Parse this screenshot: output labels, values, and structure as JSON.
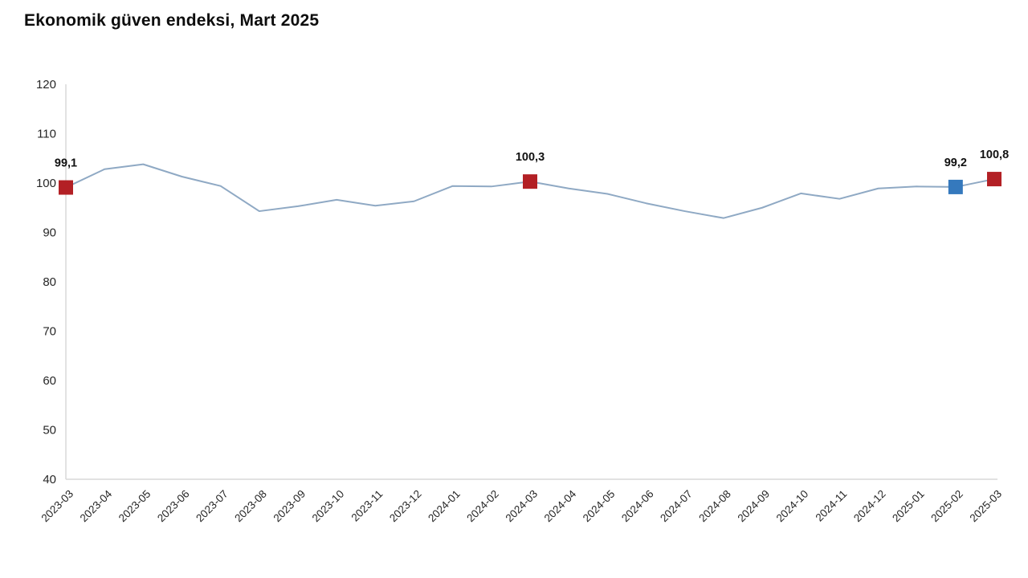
{
  "title": "Ekonomik güven endeksi, Mart 2025",
  "chart_data": {
    "type": "line",
    "title": "Ekonomik güven endeksi, Mart 2025",
    "xlabel": "",
    "ylabel": "",
    "ylim": [
      40,
      120
    ],
    "yticks": [
      120,
      110,
      100,
      90,
      80,
      70,
      60,
      50,
      40
    ],
    "grid": false,
    "legend": "none",
    "line_color": "#8fa9c4",
    "axis_color": "#d9d9d9",
    "categories": [
      "2023-03",
      "2023-04",
      "2023-05",
      "2023-06",
      "2023-07",
      "2023-08",
      "2023-09",
      "2023-10",
      "2023-11",
      "2023-12",
      "2024-01",
      "2024-02",
      "2024-03",
      "2024-04",
      "2024-05",
      "2024-06",
      "2024-07",
      "2024-08",
      "2024-09",
      "2024-10",
      "2024-11",
      "2024-12",
      "2025-01",
      "2025-02",
      "2025-03"
    ],
    "series": [
      {
        "name": "Ekonomik güven endeksi",
        "values": [
          99.1,
          102.8,
          103.8,
          101.3,
          99.4,
          94.3,
          95.3,
          96.6,
          95.4,
          96.3,
          99.4,
          99.3,
          100.3,
          98.9,
          97.8,
          95.9,
          94.3,
          92.9,
          95.0,
          97.9,
          96.8,
          98.9,
          99.3,
          99.2,
          100.8
        ]
      }
    ],
    "annotations": [
      {
        "category": "2023-03",
        "value": 99.1,
        "label": "99,1",
        "marker_color": "#b32025"
      },
      {
        "category": "2024-03",
        "value": 100.3,
        "label": "100,3",
        "marker_color": "#b32025"
      },
      {
        "category": "2025-02",
        "value": 99.2,
        "label": "99,2",
        "marker_color": "#3579bd"
      },
      {
        "category": "2025-03",
        "value": 100.8,
        "label": "100,8",
        "marker_color": "#b32025"
      }
    ]
  }
}
